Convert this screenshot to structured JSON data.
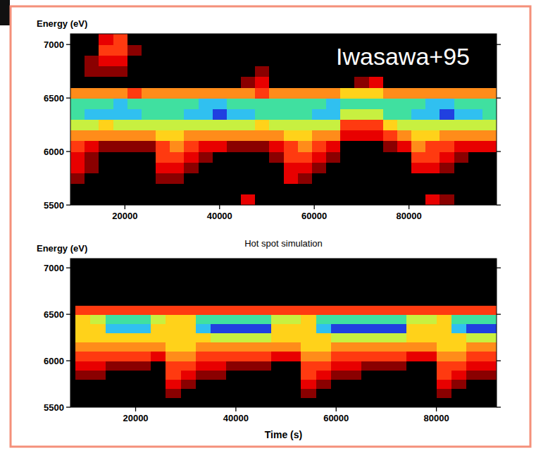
{
  "chart_data": [
    {
      "type": "heatmap",
      "y_label": "Energy (eV)",
      "annotations": [
        "Iwasawa+95"
      ],
      "xlim": [
        8500,
        98500
      ],
      "ylim": [
        5500,
        7100
      ],
      "xticks": [
        20000,
        40000,
        60000,
        80000
      ],
      "yticks": [
        5500,
        6000,
        6500,
        7000
      ],
      "zlim": [
        0,
        9
      ],
      "x_bins": [
        8500,
        11500,
        14500,
        17500,
        20500,
        23500,
        26500,
        29500,
        32500,
        35500,
        38500,
        41500,
        44500,
        47500,
        50500,
        53500,
        56500,
        59500,
        62500,
        65500,
        68500,
        71500,
        74500,
        77500,
        80500,
        83500,
        86500,
        89500,
        92500,
        95500,
        98500
      ],
      "y_bins": [
        5500,
        5600,
        5700,
        5800,
        5900,
        6000,
        6100,
        6200,
        6300,
        6400,
        6500,
        6600,
        6700,
        6800,
        6900,
        7000,
        7100
      ],
      "values": [
        [
          0,
          0,
          0,
          0,
          0,
          0,
          0,
          0,
          0,
          0,
          0,
          0,
          2,
          0,
          0,
          0,
          0,
          0,
          0,
          0,
          0,
          0,
          0,
          0,
          0,
          2,
          1,
          0,
          0,
          0
        ],
        [
          0,
          0,
          0,
          0,
          0,
          0,
          0,
          0,
          0,
          0,
          0,
          0,
          0,
          0,
          0,
          0,
          0,
          0,
          0,
          0,
          0,
          0,
          0,
          0,
          0,
          0,
          0,
          0,
          0,
          0
        ],
        [
          1,
          0,
          0,
          0,
          0,
          0,
          1,
          1,
          0,
          0,
          0,
          0,
          0,
          0,
          0,
          2,
          1,
          0,
          0,
          0,
          0,
          0,
          0,
          0,
          0,
          0,
          0,
          0,
          0,
          0
        ],
        [
          2,
          1,
          0,
          0,
          0,
          0,
          2,
          2,
          1,
          0,
          0,
          0,
          0,
          0,
          0,
          2,
          2,
          1,
          0,
          0,
          0,
          0,
          0,
          0,
          2,
          2,
          1,
          0,
          0,
          0
        ],
        [
          2,
          1,
          0,
          0,
          0,
          0,
          3,
          3,
          2,
          1,
          0,
          0,
          0,
          0,
          1,
          3,
          3,
          2,
          1,
          0,
          0,
          0,
          0,
          0,
          3,
          3,
          2,
          1,
          0,
          0
        ],
        [
          3,
          2,
          1,
          1,
          1,
          1,
          3,
          4,
          3,
          2,
          2,
          1,
          1,
          1,
          2,
          3,
          4,
          3,
          2,
          0,
          0,
          0,
          1,
          2,
          4,
          3,
          3,
          2,
          2,
          2
        ],
        [
          4,
          4,
          4,
          4,
          4,
          4,
          5,
          5,
          4,
          4,
          4,
          4,
          4,
          4,
          4,
          5,
          5,
          4,
          4,
          2,
          2,
          2,
          3,
          4,
          5,
          5,
          4,
          4,
          4,
          4
        ],
        [
          6,
          6,
          5,
          6,
          6,
          6,
          6,
          6,
          6,
          6,
          6,
          6,
          6,
          5,
          6,
          6,
          6,
          6,
          6,
          3,
          3,
          3,
          5,
          6,
          6,
          6,
          6,
          6,
          6,
          6
        ],
        [
          7,
          8,
          8,
          8,
          8,
          7,
          7,
          7,
          8,
          8,
          9,
          8,
          8,
          7,
          7,
          7,
          7,
          8,
          8,
          6,
          6,
          6,
          7,
          7,
          8,
          8,
          9,
          8,
          8,
          7
        ],
        [
          7,
          7,
          7,
          8,
          7,
          7,
          7,
          7,
          7,
          8,
          8,
          7,
          7,
          7,
          7,
          7,
          7,
          7,
          8,
          7,
          7,
          7,
          7,
          7,
          7,
          8,
          8,
          7,
          7,
          7
        ],
        [
          4,
          4,
          4,
          4,
          3,
          4,
          4,
          4,
          4,
          4,
          4,
          4,
          4,
          3,
          4,
          4,
          4,
          4,
          4,
          5,
          5,
          5,
          4,
          4,
          4,
          4,
          4,
          4,
          4,
          4
        ],
        [
          0,
          0,
          0,
          0,
          0,
          0,
          0,
          0,
          0,
          0,
          0,
          0,
          1,
          2,
          0,
          0,
          0,
          0,
          0,
          0,
          1,
          2,
          0,
          0,
          0,
          0,
          0,
          0,
          0,
          0
        ],
        [
          0,
          1,
          1,
          1,
          0,
          0,
          0,
          0,
          0,
          0,
          0,
          0,
          0,
          1,
          0,
          0,
          0,
          0,
          0,
          0,
          0,
          0,
          0,
          0,
          0,
          0,
          0,
          0,
          0,
          0
        ],
        [
          0,
          1,
          2,
          2,
          0,
          0,
          0,
          0,
          0,
          0,
          0,
          0,
          0,
          0,
          0,
          0,
          0,
          0,
          0,
          0,
          0,
          0,
          0,
          0,
          0,
          0,
          0,
          0,
          0,
          0
        ],
        [
          0,
          0,
          3,
          3,
          1,
          0,
          0,
          0,
          0,
          0,
          0,
          0,
          0,
          0,
          0,
          0,
          0,
          0,
          0,
          0,
          0,
          0,
          0,
          0,
          0,
          0,
          0,
          0,
          0,
          0
        ],
        [
          0,
          0,
          2,
          3,
          0,
          0,
          0,
          0,
          0,
          0,
          0,
          0,
          0,
          0,
          0,
          0,
          0,
          0,
          0,
          0,
          0,
          0,
          0,
          0,
          0,
          0,
          0,
          0,
          0,
          0
        ]
      ]
    },
    {
      "type": "heatmap",
      "title": "Hot spot simulation",
      "x_label": "Time (s)",
      "y_label": "Energy (eV)",
      "xlim": [
        7000,
        92000
      ],
      "ylim": [
        5500,
        7100
      ],
      "xticks": [
        20000,
        40000,
        60000,
        80000
      ],
      "yticks": [
        5500,
        6000,
        6500,
        7000
      ],
      "zlim": [
        0,
        9
      ],
      "x_bins": [
        8000,
        11000,
        14000,
        17000,
        20000,
        23000,
        26000,
        29000,
        32000,
        35000,
        38000,
        41000,
        44000,
        47000,
        50000,
        53000,
        56000,
        59000,
        62000,
        65000,
        68000,
        71000,
        74000,
        77000,
        80000,
        83000,
        86000,
        89000,
        92000
      ],
      "y_bins": [
        5500,
        5600,
        5700,
        5800,
        5900,
        6000,
        6100,
        6200,
        6300,
        6400,
        6500,
        6600,
        6700,
        6800,
        6900,
        7000,
        7100
      ],
      "values": [
        [
          0,
          0,
          0,
          0,
          0,
          0,
          0,
          0,
          0,
          0,
          0,
          0,
          0,
          0,
          0,
          0,
          0,
          0,
          0,
          0,
          0,
          0,
          0,
          0,
          0,
          0,
          0,
          0
        ],
        [
          0,
          0,
          0,
          0,
          0,
          0,
          1,
          0,
          0,
          0,
          0,
          0,
          0,
          0,
          0,
          1,
          0,
          0,
          0,
          0,
          0,
          0,
          0,
          0,
          1,
          0,
          0,
          0
        ],
        [
          0,
          0,
          0,
          0,
          0,
          0,
          2,
          1,
          0,
          0,
          0,
          0,
          0,
          0,
          0,
          2,
          1,
          0,
          0,
          0,
          0,
          0,
          0,
          0,
          2,
          1,
          0,
          0
        ],
        [
          1,
          1,
          0,
          0,
          0,
          0,
          3,
          2,
          1,
          1,
          0,
          0,
          0,
          0,
          0,
          3,
          2,
          1,
          1,
          0,
          0,
          0,
          0,
          0,
          3,
          2,
          1,
          1
        ],
        [
          2,
          2,
          1,
          1,
          1,
          0,
          3,
          3,
          2,
          2,
          1,
          1,
          1,
          0,
          0,
          3,
          3,
          2,
          2,
          1,
          1,
          1,
          0,
          0,
          3,
          3,
          2,
          2
        ],
        [
          3,
          3,
          3,
          3,
          3,
          2,
          4,
          4,
          3,
          3,
          3,
          3,
          3,
          2,
          2,
          4,
          4,
          3,
          3,
          3,
          3,
          3,
          2,
          2,
          4,
          4,
          3,
          3
        ],
        [
          4,
          4,
          4,
          4,
          4,
          4,
          5,
          5,
          4,
          4,
          4,
          4,
          4,
          4,
          4,
          5,
          5,
          4,
          4,
          4,
          4,
          4,
          4,
          4,
          5,
          5,
          4,
          4
        ],
        [
          5,
          5,
          5,
          5,
          5,
          5,
          5,
          5,
          5,
          6,
          6,
          6,
          6,
          5,
          5,
          5,
          5,
          6,
          6,
          6,
          6,
          6,
          5,
          5,
          5,
          5,
          6,
          6
        ],
        [
          5,
          5,
          8,
          8,
          8,
          5,
          5,
          5,
          8,
          9,
          9,
          9,
          9,
          5,
          5,
          5,
          8,
          9,
          9,
          9,
          9,
          9,
          5,
          5,
          5,
          8,
          9,
          9
        ],
        [
          5,
          6,
          7,
          7,
          7,
          6,
          5,
          5,
          7,
          7,
          7,
          7,
          7,
          6,
          6,
          5,
          7,
          7,
          7,
          7,
          7,
          7,
          6,
          6,
          5,
          7,
          7,
          7
        ],
        [
          3,
          3,
          3,
          3,
          3,
          3,
          3,
          3,
          3,
          3,
          3,
          3,
          3,
          3,
          3,
          3,
          3,
          3,
          3,
          3,
          3,
          3,
          3,
          3,
          3,
          3,
          3,
          3
        ],
        [
          0,
          0,
          0,
          0,
          0,
          0,
          0,
          0,
          0,
          0,
          0,
          0,
          0,
          0,
          0,
          0,
          0,
          0,
          0,
          0,
          0,
          0,
          0,
          0,
          0,
          0,
          0,
          0
        ],
        [
          0,
          0,
          0,
          0,
          0,
          0,
          0,
          0,
          0,
          0,
          0,
          0,
          0,
          0,
          0,
          0,
          0,
          0,
          0,
          0,
          0,
          0,
          0,
          0,
          0,
          0,
          0,
          0
        ],
        [
          0,
          0,
          0,
          0,
          0,
          0,
          0,
          0,
          0,
          0,
          0,
          0,
          0,
          0,
          0,
          0,
          0,
          0,
          0,
          0,
          0,
          0,
          0,
          0,
          0,
          0,
          0,
          0
        ],
        [
          0,
          0,
          0,
          0,
          0,
          0,
          0,
          0,
          0,
          0,
          0,
          0,
          0,
          0,
          0,
          0,
          0,
          0,
          0,
          0,
          0,
          0,
          0,
          0,
          0,
          0,
          0,
          0
        ],
        [
          0,
          0,
          0,
          0,
          0,
          0,
          0,
          0,
          0,
          0,
          0,
          0,
          0,
          0,
          0,
          0,
          0,
          0,
          0,
          0,
          0,
          0,
          0,
          0,
          0,
          0,
          0,
          0
        ]
      ]
    }
  ]
}
